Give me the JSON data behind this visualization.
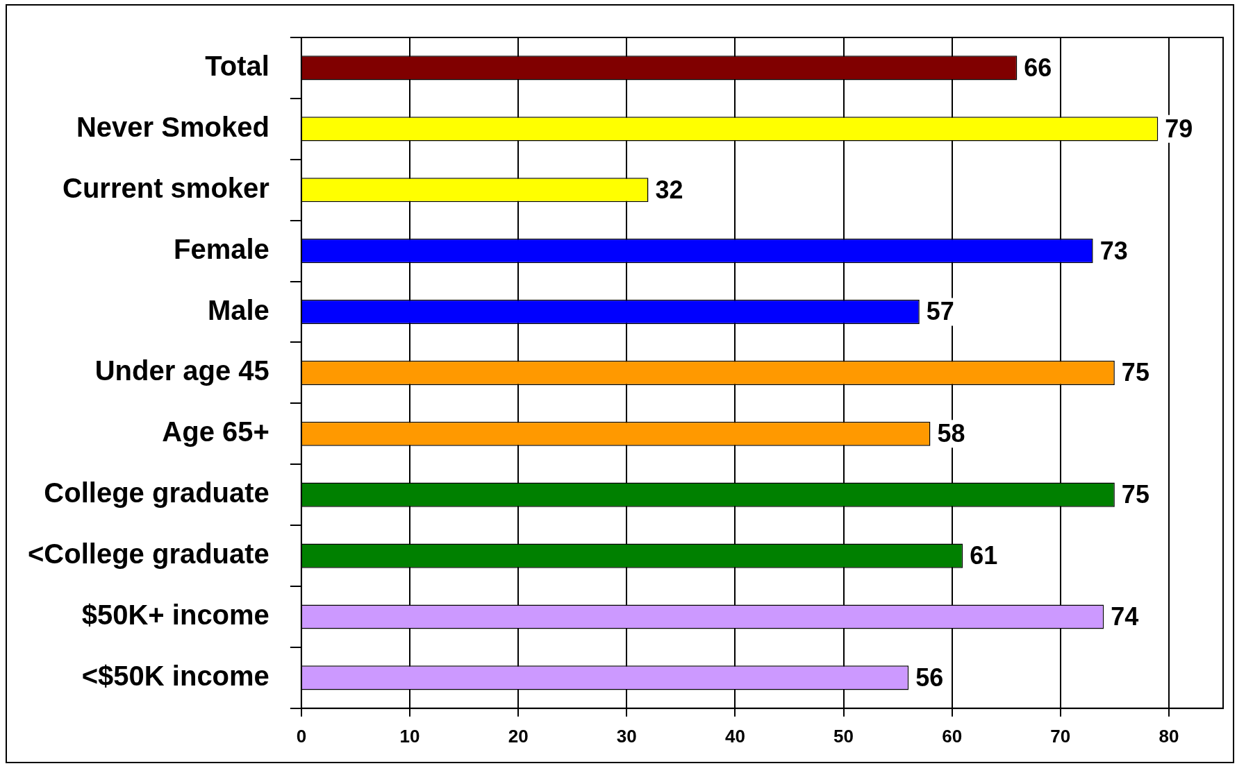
{
  "chart_data": {
    "type": "bar",
    "orientation": "horizontal",
    "categories": [
      "Total",
      "Never Smoked",
      "Current smoker",
      "Female",
      "Male",
      "Under age 45",
      "Age 65+",
      "College graduate",
      "<College graduate",
      "$50K+ income",
      "<$50K income"
    ],
    "values": [
      66,
      79,
      32,
      73,
      57,
      75,
      58,
      75,
      61,
      74,
      56
    ],
    "colors": [
      "#800000",
      "#ffff00",
      "#ffff00",
      "#0000ff",
      "#0000ff",
      "#ff9900",
      "#ff9900",
      "#008000",
      "#008000",
      "#cc99ff",
      "#cc99ff"
    ],
    "xlim": [
      0,
      85
    ],
    "xticks": [
      0,
      10,
      20,
      30,
      40,
      50,
      60,
      70,
      80
    ],
    "grid": "x",
    "data_labels": true,
    "legend": false
  }
}
